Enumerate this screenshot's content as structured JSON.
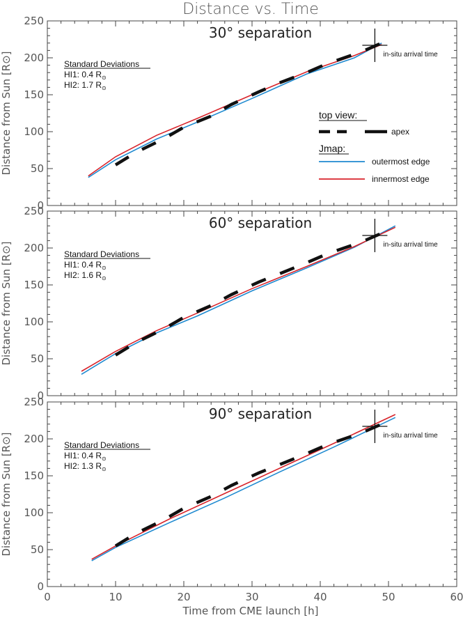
{
  "figure_title": "Distance vs. Time",
  "xlabel": "Time from CME launch [h]",
  "ylabel": "Distance from Sun [R⊙]",
  "arrival_label": "in-situ arrival time",
  "legend": {
    "top_view_heading": "top view:",
    "apex_label": "apex",
    "jmap_heading": "Jmap:",
    "outer_label": "outermost edge",
    "inner_label": "innermost edge"
  },
  "colors": {
    "apex": "#111111",
    "outer": "#1f8ad0",
    "inner": "#d8232a",
    "axis": "#444444"
  },
  "chart_data": [
    {
      "type": "line",
      "title": "30° separation",
      "stats_heading": "Standard Deviations",
      "stats": [
        {
          "label": "HI1: 0.4 R",
          "sub": "⊙"
        },
        {
          "label": "HI2: 1.7 R",
          "sub": "⊙"
        }
      ],
      "xlim": [
        0,
        60
      ],
      "ylim": [
        0,
        250
      ],
      "xticks": [
        0,
        10,
        20,
        30,
        40,
        50,
        60
      ],
      "yticks": [
        0,
        50,
        100,
        150,
        200,
        250
      ],
      "arrival": {
        "x": 48,
        "y": 217
      },
      "series": [
        {
          "name": "outermost edge",
          "x": [
            6,
            10,
            16,
            22,
            30,
            38,
            45,
            49
          ],
          "y": [
            38,
            62,
            90,
            113,
            145,
            178,
            200,
            220
          ]
        },
        {
          "name": "innermost edge",
          "x": [
            6,
            10,
            16,
            22,
            30,
            38,
            45,
            49
          ],
          "y": [
            40,
            66,
            95,
            118,
            150,
            181,
            203,
            218
          ]
        },
        {
          "name": "apex",
          "x": [
            10,
            13,
            17,
            20,
            24,
            27,
            31,
            34,
            38,
            41,
            46,
            49
          ],
          "y": [
            55,
            72,
            90,
            106,
            121,
            137,
            154,
            166,
            180,
            192,
            208,
            220
          ]
        }
      ]
    },
    {
      "type": "line",
      "title": "60° separation",
      "stats_heading": "Standard Deviations",
      "stats": [
        {
          "label": "HI1: 0.4 R",
          "sub": "⊙"
        },
        {
          "label": "HI2: 1.6 R",
          "sub": "⊙"
        }
      ],
      "xlim": [
        0,
        60
      ],
      "ylim": [
        0,
        250
      ],
      "xticks": [
        0,
        10,
        20,
        30,
        40,
        50,
        60
      ],
      "yticks": [
        0,
        50,
        100,
        150,
        200,
        250
      ],
      "arrival": {
        "x": 48,
        "y": 217
      },
      "series": [
        {
          "name": "outermost edge",
          "x": [
            5,
            10,
            16,
            22,
            30,
            38,
            45,
            51
          ],
          "y": [
            29,
            57,
            85,
            108,
            142,
            173,
            201,
            230
          ]
        },
        {
          "name": "innermost edge",
          "x": [
            5,
            10,
            16,
            22,
            30,
            38,
            45,
            51
          ],
          "y": [
            33,
            60,
            88,
            112,
            145,
            175,
            202,
            228
          ]
        },
        {
          "name": "apex",
          "x": [
            10,
            13,
            17,
            20,
            24,
            27,
            31,
            34,
            38,
            41,
            46,
            49
          ],
          "y": [
            55,
            72,
            90,
            106,
            122,
            137,
            154,
            165,
            180,
            192,
            208,
            220
          ]
        }
      ]
    },
    {
      "type": "line",
      "title": "90° separation",
      "stats_heading": "Standard Deviations",
      "stats": [
        {
          "label": "HI1: 0.4 R",
          "sub": "⊙"
        },
        {
          "label": "HI2: 1.3 R",
          "sub": "⊙"
        }
      ],
      "xlim": [
        0,
        60
      ],
      "ylim": [
        0,
        250
      ],
      "xticks": [
        0,
        10,
        20,
        30,
        40,
        50,
        60
      ],
      "yticks": [
        0,
        50,
        100,
        150,
        200,
        250
      ],
      "arrival": {
        "x": 48,
        "y": 217
      },
      "series": [
        {
          "name": "outermost edge",
          "x": [
            6.5,
            10,
            18,
            26,
            34,
            42,
            51
          ],
          "y": [
            35,
            53,
            87,
            120,
            155,
            189,
            229
          ]
        },
        {
          "name": "innermost edge",
          "x": [
            6.5,
            10,
            18,
            26,
            34,
            42,
            51
          ],
          "y": [
            37,
            55,
            92,
            126,
            160,
            194,
            233
          ]
        },
        {
          "name": "apex",
          "x": [
            10,
            13,
            17,
            20,
            24,
            27,
            31,
            34,
            38,
            41,
            46,
            49
          ],
          "y": [
            55,
            72,
            90,
            106,
            122,
            137,
            154,
            165,
            180,
            192,
            208,
            220
          ]
        }
      ]
    }
  ]
}
